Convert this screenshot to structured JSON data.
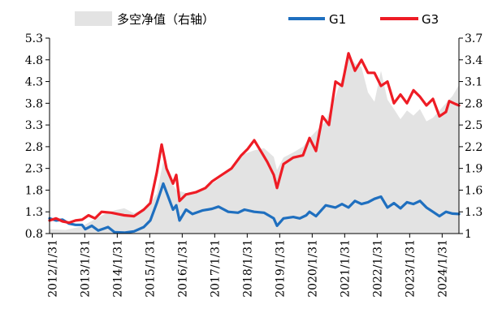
{
  "chart_data": {
    "type": "line",
    "legend": {
      "position": "top",
      "items": [
        {
          "key": "area",
          "label": "多空净值（右轴）",
          "color": "#e3e3e3"
        },
        {
          "key": "g1",
          "label": "G1",
          "color": "#1f6fbf"
        },
        {
          "key": "g3",
          "label": "G3",
          "color": "#ee1c25"
        }
      ]
    },
    "x_labels": [
      "2012/1/31",
      "2013/1/31",
      "2014/1/31",
      "2015/1/31",
      "2016/1/31",
      "2017/1/31",
      "2018/1/31",
      "2019/1/31",
      "2020/1/31",
      "2021/1/31",
      "2022/1/31",
      "2023/1/31",
      "2024/1/31"
    ],
    "x_range": [
      2012.0,
      2024.6
    ],
    "left_axis": {
      "ticks": [
        "5.3",
        "4.8",
        "4.3",
        "3.8",
        "3.3",
        "2.8",
        "2.3",
        "1.8",
        "1.3",
        "0.8"
      ],
      "range": [
        0.8,
        5.3
      ]
    },
    "right_axis": {
      "ticks": [
        "3.7",
        "3.4",
        "3.1",
        "2.8",
        "2.5",
        "2.2",
        "1.9",
        "1.6",
        "1.3",
        "1"
      ],
      "range": [
        1.0,
        3.7
      ]
    },
    "grid": false,
    "series": [
      {
        "name": "多空净值（右轴）",
        "axis": "right",
        "style": "area",
        "color": "#e3e3e3",
        "points": [
          [
            2012.0,
            1.06
          ],
          [
            2012.5,
            1.05
          ],
          [
            2013.0,
            1.1
          ],
          [
            2013.4,
            1.2
          ],
          [
            2013.7,
            1.27
          ],
          [
            2014.0,
            1.32
          ],
          [
            2014.3,
            1.35
          ],
          [
            2014.6,
            1.28
          ],
          [
            2015.0,
            1.36
          ],
          [
            2015.3,
            1.55
          ],
          [
            2015.5,
            2.0
          ],
          [
            2015.7,
            1.75
          ],
          [
            2015.9,
            1.6
          ],
          [
            2016.2,
            1.56
          ],
          [
            2016.5,
            1.55
          ],
          [
            2016.9,
            1.66
          ],
          [
            2017.2,
            1.75
          ],
          [
            2017.5,
            1.85
          ],
          [
            2017.8,
            2.0
          ],
          [
            2018.0,
            2.1
          ],
          [
            2018.3,
            2.15
          ],
          [
            2018.6,
            2.18
          ],
          [
            2018.9,
            2.06
          ],
          [
            2019.0,
            1.88
          ],
          [
            2019.2,
            2.05
          ],
          [
            2019.5,
            2.12
          ],
          [
            2019.8,
            2.2
          ],
          [
            2020.0,
            2.32
          ],
          [
            2020.3,
            2.46
          ],
          [
            2020.5,
            2.55
          ],
          [
            2020.8,
            2.9
          ],
          [
            2021.0,
            3.15
          ],
          [
            2021.2,
            3.45
          ],
          [
            2021.4,
            3.35
          ],
          [
            2021.6,
            3.3
          ],
          [
            2021.8,
            2.95
          ],
          [
            2022.0,
            2.82
          ],
          [
            2022.2,
            3.25
          ],
          [
            2022.4,
            2.85
          ],
          [
            2022.6,
            2.72
          ],
          [
            2022.8,
            2.58
          ],
          [
            2023.0,
            2.7
          ],
          [
            2023.2,
            2.63
          ],
          [
            2023.4,
            2.72
          ],
          [
            2023.6,
            2.55
          ],
          [
            2023.8,
            2.6
          ],
          [
            2024.0,
            2.7
          ],
          [
            2024.2,
            2.8
          ],
          [
            2024.4,
            2.9
          ],
          [
            2024.6,
            3.05
          ]
        ]
      },
      {
        "name": "G1",
        "axis": "left",
        "style": "line",
        "color": "#1f6fbf",
        "points": [
          [
            2012.0,
            1.15
          ],
          [
            2012.2,
            1.1
          ],
          [
            2012.4,
            1.12
          ],
          [
            2012.6,
            1.03
          ],
          [
            2012.8,
            1.0
          ],
          [
            2013.0,
            1.0
          ],
          [
            2013.1,
            0.9
          ],
          [
            2013.3,
            0.98
          ],
          [
            2013.5,
            0.87
          ],
          [
            2013.8,
            0.95
          ],
          [
            2014.0,
            0.83
          ],
          [
            2014.3,
            0.82
          ],
          [
            2014.6,
            0.85
          ],
          [
            2014.9,
            0.95
          ],
          [
            2015.1,
            1.1
          ],
          [
            2015.3,
            1.5
          ],
          [
            2015.5,
            1.95
          ],
          [
            2015.6,
            1.75
          ],
          [
            2015.8,
            1.35
          ],
          [
            2015.9,
            1.45
          ],
          [
            2016.0,
            1.1
          ],
          [
            2016.2,
            1.35
          ],
          [
            2016.4,
            1.25
          ],
          [
            2016.7,
            1.33
          ],
          [
            2017.0,
            1.37
          ],
          [
            2017.2,
            1.42
          ],
          [
            2017.5,
            1.3
          ],
          [
            2017.8,
            1.28
          ],
          [
            2018.0,
            1.35
          ],
          [
            2018.3,
            1.3
          ],
          [
            2018.6,
            1.28
          ],
          [
            2018.9,
            1.15
          ],
          [
            2019.0,
            0.98
          ],
          [
            2019.2,
            1.15
          ],
          [
            2019.5,
            1.18
          ],
          [
            2019.7,
            1.15
          ],
          [
            2019.9,
            1.22
          ],
          [
            2020.0,
            1.3
          ],
          [
            2020.2,
            1.2
          ],
          [
            2020.5,
            1.45
          ],
          [
            2020.8,
            1.4
          ],
          [
            2021.0,
            1.48
          ],
          [
            2021.2,
            1.4
          ],
          [
            2021.4,
            1.55
          ],
          [
            2021.6,
            1.48
          ],
          [
            2021.8,
            1.52
          ],
          [
            2022.0,
            1.6
          ],
          [
            2022.2,
            1.65
          ],
          [
            2022.4,
            1.4
          ],
          [
            2022.6,
            1.5
          ],
          [
            2022.8,
            1.38
          ],
          [
            2023.0,
            1.52
          ],
          [
            2023.2,
            1.48
          ],
          [
            2023.4,
            1.55
          ],
          [
            2023.6,
            1.4
          ],
          [
            2023.8,
            1.3
          ],
          [
            2024.0,
            1.2
          ],
          [
            2024.2,
            1.3
          ],
          [
            2024.4,
            1.26
          ],
          [
            2024.6,
            1.25
          ]
        ]
      },
      {
        "name": "G3",
        "axis": "left",
        "style": "line",
        "color": "#ee1c25",
        "points": [
          [
            2012.0,
            1.1
          ],
          [
            2012.2,
            1.15
          ],
          [
            2012.4,
            1.08
          ],
          [
            2012.6,
            1.05
          ],
          [
            2012.8,
            1.1
          ],
          [
            2013.0,
            1.12
          ],
          [
            2013.2,
            1.22
          ],
          [
            2013.4,
            1.15
          ],
          [
            2013.6,
            1.3
          ],
          [
            2013.9,
            1.28
          ],
          [
            2014.1,
            1.25
          ],
          [
            2014.3,
            1.22
          ],
          [
            2014.6,
            1.2
          ],
          [
            2014.9,
            1.35
          ],
          [
            2015.1,
            1.5
          ],
          [
            2015.3,
            2.2
          ],
          [
            2015.45,
            2.85
          ],
          [
            2015.6,
            2.3
          ],
          [
            2015.8,
            1.95
          ],
          [
            2015.9,
            2.15
          ],
          [
            2016.0,
            1.55
          ],
          [
            2016.2,
            1.7
          ],
          [
            2016.5,
            1.75
          ],
          [
            2016.8,
            1.85
          ],
          [
            2017.0,
            2.0
          ],
          [
            2017.3,
            2.15
          ],
          [
            2017.6,
            2.3
          ],
          [
            2017.9,
            2.6
          ],
          [
            2018.1,
            2.75
          ],
          [
            2018.3,
            2.95
          ],
          [
            2018.5,
            2.7
          ],
          [
            2018.7,
            2.45
          ],
          [
            2018.9,
            2.15
          ],
          [
            2019.0,
            1.85
          ],
          [
            2019.2,
            2.4
          ],
          [
            2019.5,
            2.55
          ],
          [
            2019.8,
            2.6
          ],
          [
            2020.0,
            3.0
          ],
          [
            2020.2,
            2.7
          ],
          [
            2020.4,
            3.5
          ],
          [
            2020.6,
            3.3
          ],
          [
            2020.8,
            4.3
          ],
          [
            2021.0,
            4.2
          ],
          [
            2021.2,
            4.95
          ],
          [
            2021.4,
            4.55
          ],
          [
            2021.6,
            4.8
          ],
          [
            2021.8,
            4.5
          ],
          [
            2022.0,
            4.5
          ],
          [
            2022.2,
            4.2
          ],
          [
            2022.4,
            4.3
          ],
          [
            2022.6,
            3.8
          ],
          [
            2022.8,
            4.0
          ],
          [
            2023.0,
            3.8
          ],
          [
            2023.2,
            4.1
          ],
          [
            2023.4,
            3.95
          ],
          [
            2023.6,
            3.75
          ],
          [
            2023.8,
            3.9
          ],
          [
            2024.0,
            3.5
          ],
          [
            2024.2,
            3.6
          ],
          [
            2024.3,
            3.85
          ],
          [
            2024.5,
            3.78
          ],
          [
            2024.6,
            3.75
          ]
        ]
      }
    ]
  }
}
